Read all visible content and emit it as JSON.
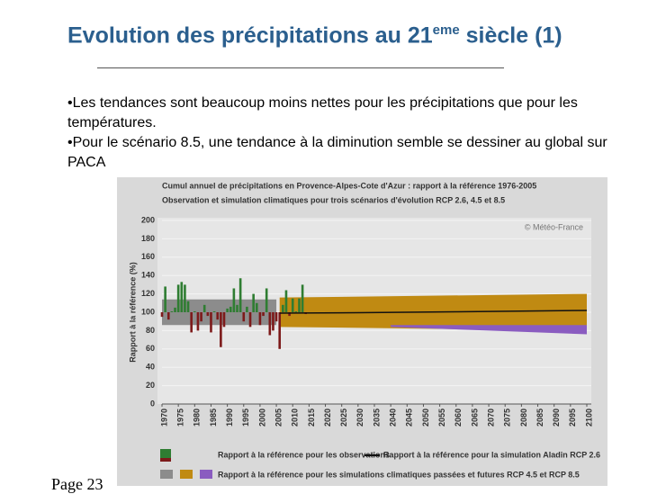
{
  "slide": {
    "title": "Evolution des précipitations au 21",
    "title_sup": "eme",
    "title_end": " siècle (1)",
    "bullets": [
      "Les tendances sont beaucoup moins nettes pour les précipitations que pour les températures.",
      "Pour le scénario 8.5, une tendance à la diminution semble se dessiner au global sur PACA"
    ],
    "footer": "Page 23"
  },
  "chart_data": {
    "type": "bar",
    "title": "Cumul annuel de précipitations en Provence-Alpes-Cote d'Azur : rapport à la référence 1976-2005",
    "subtitle": "Observation et simulation climatiques pour trois scénarios d'évolution RCP 2.6, 4.5 et 8.5",
    "ylabel": "Rapport à la référence (%)",
    "source": "© Météo-France",
    "xlim": [
      1970,
      2100
    ],
    "xticks": [
      1970,
      1975,
      1980,
      1985,
      1990,
      1995,
      2000,
      2005,
      2010,
      2015,
      2020,
      2025,
      2030,
      2035,
      2040,
      2045,
      2050,
      2055,
      2060,
      2065,
      2070,
      2075,
      2080,
      2085,
      2090,
      2095,
      2100
    ],
    "ylim": [
      0,
      200
    ],
    "yticks": [
      0,
      20,
      40,
      60,
      80,
      100,
      120,
      140,
      160,
      180,
      200
    ],
    "baseline": 100,
    "observations": {
      "name": "Rapport à la référence pour les observations",
      "color_above": "#2f7d32",
      "color_below": "#7d1a1a",
      "x": [
        1970,
        1971,
        1972,
        1973,
        1974,
        1975,
        1976,
        1977,
        1978,
        1979,
        1980,
        1981,
        1982,
        1983,
        1984,
        1985,
        1986,
        1987,
        1988,
        1989,
        1990,
        1991,
        1992,
        1993,
        1994,
        1995,
        1996,
        1997,
        1998,
        1999,
        2000,
        2001,
        2002,
        2003,
        2004,
        2005,
        2006,
        2007,
        2008,
        2009,
        2010,
        2011,
        2012,
        2013,
        2014
      ],
      "values": [
        95,
        128,
        92,
        101,
        105,
        130,
        133,
        130,
        112,
        78,
        101,
        80,
        90,
        108,
        96,
        78,
        101,
        92,
        62,
        84,
        104,
        106,
        126,
        108,
        137,
        90,
        106,
        84,
        120,
        110,
        86,
        96,
        126,
        75,
        80,
        90,
        60,
        108,
        124,
        96,
        115,
        101,
        115,
        130,
        98
      ]
    },
    "line": {
      "name": "Rapport à la référence pour la simulation Aladin RCP 2.6",
      "color": "#111111",
      "x": [
        2006,
        2030,
        2060,
        2100
      ],
      "values": [
        99,
        99.5,
        100.5,
        102
      ]
    },
    "bands_name": "Rapport à la référence pour les simulations climatiques passées et futures RCP 4.5 et RCP 8.5",
    "bands": [
      {
        "color": "#8c8c8c",
        "x": [
          1970,
          2005
        ],
        "lower": [
          86,
          86
        ],
        "upper": [
          114,
          114
        ]
      },
      {
        "color": "#c08a12",
        "x": [
          2006,
          2100
        ],
        "lower": [
          84,
          80
        ],
        "upper": [
          116,
          120
        ]
      },
      {
        "color": "#8a5cc0",
        "x": [
          2040,
          2070,
          2100
        ],
        "lower": [
          84,
          80,
          76
        ],
        "upper": [
          86,
          86,
          86
        ]
      }
    ]
  }
}
